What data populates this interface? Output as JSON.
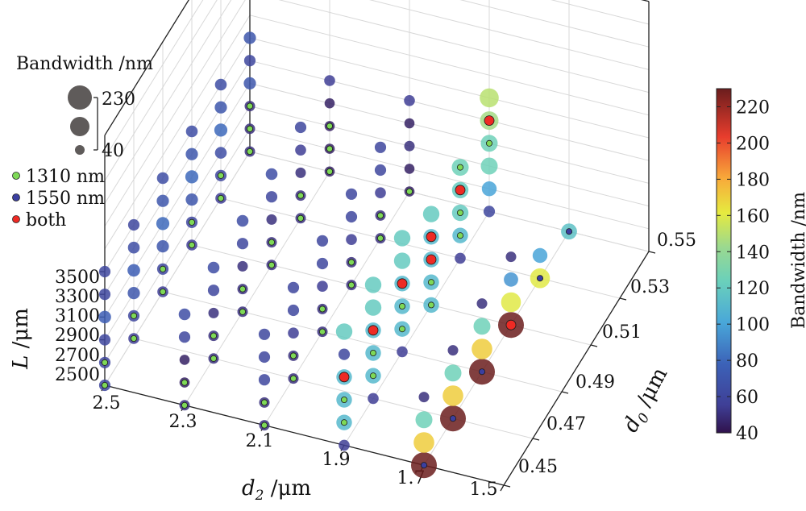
{
  "chart_data": {
    "type": "scatter3d",
    "axes": {
      "d2": {
        "ticks": [
          "2.5",
          "2.3",
          "2.1",
          "1.9",
          "1.7",
          "1.5"
        ],
        "range": [
          2.5,
          1.5
        ]
      },
      "d0": {
        "ticks": [
          "0.45",
          "0.47",
          "0.49",
          "0.51",
          "0.53",
          "0.55"
        ],
        "range": [
          0.45,
          0.55
        ]
      },
      "L": {
        "ticks": [
          "2500",
          "2700",
          "2900",
          "3100",
          "3300",
          "3500"
        ],
        "range": [
          2500,
          3500
        ]
      }
    },
    "size_legend": {
      "title": "Bandwidth /nm",
      "max_label": "230",
      "min_label": "40"
    },
    "marker_legend": [
      {
        "key": "1310",
        "label": "1310 nm",
        "color": "#7ed957"
      },
      {
        "key": "1550",
        "label": "1550 nm",
        "color": "#3b3fa0"
      },
      {
        "key": "both",
        "label": "both",
        "color": "#ee2a24"
      }
    ],
    "colorbar": {
      "ticks": [
        "40",
        "60",
        "80",
        "100",
        "120",
        "140",
        "160",
        "180",
        "200",
        "220"
      ],
      "range": [
        40,
        230
      ]
    },
    "groups": [
      {
        "d2": 2.5,
        "d0": 0.45,
        "points": [
          {
            "L": 2500,
            "bw": 60,
            "m": "1310"
          },
          {
            "L": 2700,
            "bw": 60,
            "m": "1310"
          },
          {
            "L": 2900,
            "bw": 60,
            "m": ""
          },
          {
            "L": 3100,
            "bw": 75,
            "m": ""
          },
          {
            "L": 3300,
            "bw": 60,
            "m": ""
          },
          {
            "L": 3500,
            "bw": 60,
            "m": ""
          }
        ]
      },
      {
        "d2": 2.5,
        "d0": 0.47,
        "points": [
          {
            "L": 2500,
            "bw": 55,
            "m": "1310"
          },
          {
            "L": 2700,
            "bw": 60,
            "m": "1310"
          },
          {
            "L": 2900,
            "bw": 70,
            "m": ""
          },
          {
            "L": 3100,
            "bw": 75,
            "m": ""
          },
          {
            "L": 3300,
            "bw": 65,
            "m": ""
          },
          {
            "L": 3500,
            "bw": 60,
            "m": ""
          }
        ]
      },
      {
        "d2": 2.5,
        "d0": 0.49,
        "points": [
          {
            "L": 2500,
            "bw": 55,
            "m": "1310"
          },
          {
            "L": 2700,
            "bw": 60,
            "m": "1310"
          },
          {
            "L": 2900,
            "bw": 70,
            "m": ""
          },
          {
            "L": 3100,
            "bw": 80,
            "m": ""
          },
          {
            "L": 3300,
            "bw": 70,
            "m": ""
          },
          {
            "L": 3500,
            "bw": 65,
            "m": ""
          }
        ]
      },
      {
        "d2": 2.5,
        "d0": 0.51,
        "points": [
          {
            "L": 2500,
            "bw": 55,
            "m": "1310"
          },
          {
            "L": 2700,
            "bw": 60,
            "m": "1310"
          },
          {
            "L": 2900,
            "bw": 70,
            "m": ""
          },
          {
            "L": 3100,
            "bw": 80,
            "m": ""
          },
          {
            "L": 3300,
            "bw": 70,
            "m": ""
          },
          {
            "L": 3500,
            "bw": 65,
            "m": ""
          }
        ]
      },
      {
        "d2": 2.5,
        "d0": 0.53,
        "points": [
          {
            "L": 2500,
            "bw": 55,
            "m": "1310"
          },
          {
            "L": 2700,
            "bw": 60,
            "m": "1310"
          },
          {
            "L": 2900,
            "bw": 65,
            "m": ""
          },
          {
            "L": 3100,
            "bw": 80,
            "m": ""
          },
          {
            "L": 3300,
            "bw": 70,
            "m": ""
          },
          {
            "L": 3500,
            "bw": 65,
            "m": ""
          }
        ]
      },
      {
        "d2": 2.5,
        "d0": 0.55,
        "points": [
          {
            "L": 2500,
            "bw": 50,
            "m": "1310"
          },
          {
            "L": 2700,
            "bw": 50,
            "m": "1310"
          },
          {
            "L": 2900,
            "bw": 50,
            "m": "1310"
          },
          {
            "L": 3100,
            "bw": 70,
            "m": ""
          },
          {
            "L": 3300,
            "bw": 60,
            "m": ""
          },
          {
            "L": 3500,
            "bw": 70,
            "m": ""
          }
        ]
      },
      {
        "d2": 2.3,
        "d0": 0.45,
        "points": [
          {
            "L": 2500,
            "bw": 50,
            "m": "1310"
          },
          {
            "L": 2700,
            "bw": 45,
            "m": "1310"
          },
          {
            "L": 2900,
            "bw": 45,
            "m": ""
          },
          {
            "L": 3100,
            "bw": 60,
            "m": ""
          },
          {
            "L": 3300,
            "bw": 65,
            "m": ""
          }
        ]
      },
      {
        "d2": 2.3,
        "d0": 0.47,
        "points": [
          {
            "L": 2500,
            "bw": 50,
            "m": "1310"
          },
          {
            "L": 2700,
            "bw": 50,
            "m": "1310"
          },
          {
            "L": 2900,
            "bw": 50,
            "m": ""
          },
          {
            "L": 3100,
            "bw": 60,
            "m": ""
          },
          {
            "L": 3300,
            "bw": 65,
            "m": ""
          }
        ]
      },
      {
        "d2": 2.3,
        "d0": 0.49,
        "points": [
          {
            "L": 2500,
            "bw": 50,
            "m": "1310"
          },
          {
            "L": 2700,
            "bw": 50,
            "m": "1310"
          },
          {
            "L": 2900,
            "bw": 50,
            "m": ""
          },
          {
            "L": 3100,
            "bw": 60,
            "m": ""
          },
          {
            "L": 3300,
            "bw": 65,
            "m": ""
          }
        ]
      },
      {
        "d2": 2.3,
        "d0": 0.51,
        "points": [
          {
            "L": 2500,
            "bw": 50,
            "m": "1310"
          },
          {
            "L": 2700,
            "bw": 50,
            "m": "1310"
          },
          {
            "L": 2900,
            "bw": 50,
            "m": ""
          },
          {
            "L": 3100,
            "bw": 60,
            "m": ""
          },
          {
            "L": 3300,
            "bw": 65,
            "m": ""
          }
        ]
      },
      {
        "d2": 2.3,
        "d0": 0.53,
        "points": [
          {
            "L": 2500,
            "bw": 50,
            "m": "1310"
          },
          {
            "L": 2700,
            "bw": 50,
            "m": "1310"
          },
          {
            "L": 2900,
            "bw": 50,
            "m": ""
          },
          {
            "L": 3100,
            "bw": 55,
            "m": ""
          },
          {
            "L": 3300,
            "bw": 60,
            "m": ""
          }
        ]
      },
      {
        "d2": 2.3,
        "d0": 0.55,
        "points": [
          {
            "L": 2500,
            "bw": 45,
            "m": "1310"
          },
          {
            "L": 2700,
            "bw": 45,
            "m": "1310"
          },
          {
            "L": 2900,
            "bw": 45,
            "m": "1310"
          },
          {
            "L": 3100,
            "bw": 45,
            "m": ""
          },
          {
            "L": 3300,
            "bw": 55,
            "m": ""
          }
        ]
      },
      {
        "d2": 2.1,
        "d0": 0.45,
        "points": [
          {
            "L": 2500,
            "bw": 50,
            "m": "1310"
          },
          {
            "L": 2700,
            "bw": 50,
            "m": "1310"
          },
          {
            "L": 2900,
            "bw": 60,
            "m": ""
          },
          {
            "L": 3100,
            "bw": 60,
            "m": ""
          },
          {
            "L": 3300,
            "bw": 60,
            "m": ""
          }
        ]
      },
      {
        "d2": 2.1,
        "d0": 0.47,
        "points": [
          {
            "L": 2500,
            "bw": 50,
            "m": "1310"
          },
          {
            "L": 2700,
            "bw": 50,
            "m": "1310"
          },
          {
            "L": 2900,
            "bw": 55,
            "m": ""
          },
          {
            "L": 3100,
            "bw": 60,
            "m": ""
          },
          {
            "L": 3300,
            "bw": 60,
            "m": ""
          }
        ]
      },
      {
        "d2": 2.1,
        "d0": 0.49,
        "points": [
          {
            "L": 2500,
            "bw": 50,
            "m": "1310"
          },
          {
            "L": 2700,
            "bw": 50,
            "m": "1310"
          },
          {
            "L": 2900,
            "bw": 55,
            "m": ""
          },
          {
            "L": 3100,
            "bw": 60,
            "m": ""
          },
          {
            "L": 3300,
            "bw": 60,
            "m": ""
          }
        ]
      },
      {
        "d2": 2.1,
        "d0": 0.51,
        "points": [
          {
            "L": 2500,
            "bw": 50,
            "m": "1310"
          },
          {
            "L": 2700,
            "bw": 50,
            "m": "1310"
          },
          {
            "L": 2900,
            "bw": 55,
            "m": ""
          },
          {
            "L": 3100,
            "bw": 60,
            "m": ""
          },
          {
            "L": 3300,
            "bw": 60,
            "m": ""
          }
        ]
      },
      {
        "d2": 2.1,
        "d0": 0.53,
        "points": [
          {
            "L": 2500,
            "bw": 50,
            "m": "1310"
          },
          {
            "L": 2700,
            "bw": 50,
            "m": "1310"
          },
          {
            "L": 2900,
            "bw": 55,
            "m": ""
          },
          {
            "L": 3100,
            "bw": 60,
            "m": ""
          },
          {
            "L": 3300,
            "bw": 60,
            "m": ""
          }
        ]
      },
      {
        "d2": 2.1,
        "d0": 0.55,
        "points": [
          {
            "L": 2500,
            "bw": 45,
            "m": "1310"
          },
          {
            "L": 2700,
            "bw": 45,
            "m": ""
          },
          {
            "L": 2900,
            "bw": 50,
            "m": ""
          },
          {
            "L": 3100,
            "bw": 45,
            "m": ""
          },
          {
            "L": 3300,
            "bw": 55,
            "m": ""
          }
        ]
      },
      {
        "d2": 1.9,
        "d0": 0.45,
        "points": [
          {
            "L": 2500,
            "bw": 55,
            "m": ""
          },
          {
            "L": 2700,
            "bw": 110,
            "m": "1310"
          },
          {
            "L": 2900,
            "bw": 110,
            "m": "1310"
          },
          {
            "L": 3100,
            "bw": 110,
            "m": "both"
          },
          {
            "L": 3300,
            "bw": 60,
            "m": ""
          },
          {
            "L": 3500,
            "bw": 120,
            "m": ""
          }
        ]
      },
      {
        "d2": 1.9,
        "d0": 0.47,
        "points": [
          {
            "L": 2500,
            "bw": 55,
            "m": ""
          },
          {
            "L": 2700,
            "bw": 110,
            "m": "1310"
          },
          {
            "L": 2900,
            "bw": 110,
            "m": "1310"
          },
          {
            "L": 3100,
            "bw": 110,
            "m": "both"
          },
          {
            "L": 3300,
            "bw": 120,
            "m": ""
          },
          {
            "L": 3500,
            "bw": 120,
            "m": ""
          }
        ]
      },
      {
        "d2": 1.9,
        "d0": 0.49,
        "points": [
          {
            "L": 2500,
            "bw": 55,
            "m": ""
          },
          {
            "L": 2700,
            "bw": 110,
            "m": "1310"
          },
          {
            "L": 2900,
            "bw": 110,
            "m": "1310"
          },
          {
            "L": 3100,
            "bw": 110,
            "m": "both"
          },
          {
            "L": 3300,
            "bw": 120,
            "m": ""
          },
          {
            "L": 3500,
            "bw": 120,
            "m": ""
          }
        ]
      },
      {
        "d2": 1.9,
        "d0": 0.51,
        "points": [
          {
            "L": 2500,
            "bw": 110,
            "m": "1310"
          },
          {
            "L": 2700,
            "bw": 110,
            "m": "1310"
          },
          {
            "L": 2900,
            "bw": 110,
            "m": "both"
          },
          {
            "L": 3100,
            "bw": 110,
            "m": "both"
          },
          {
            "L": 3300,
            "bw": 120,
            "m": ""
          }
        ]
      },
      {
        "d2": 1.9,
        "d0": 0.53,
        "points": [
          {
            "L": 2500,
            "bw": 55,
            "m": ""
          },
          {
            "L": 2700,
            "bw": 110,
            "m": "1310"
          },
          {
            "L": 2900,
            "bw": 120,
            "m": "1310"
          },
          {
            "L": 3100,
            "bw": 120,
            "m": "both"
          },
          {
            "L": 3300,
            "bw": 125,
            "m": "1310"
          }
        ]
      },
      {
        "d2": 1.9,
        "d0": 0.55,
        "points": [
          {
            "L": 2500,
            "bw": 60,
            "m": ""
          },
          {
            "L": 2700,
            "bw": 100,
            "m": ""
          },
          {
            "L": 2900,
            "bw": 125,
            "m": ""
          },
          {
            "L": 3100,
            "bw": 125,
            "m": "1310"
          },
          {
            "L": 3300,
            "bw": 145,
            "m": "both"
          },
          {
            "L": 3500,
            "bw": 150,
            "m": ""
          }
        ]
      },
      {
        "d2": 1.7,
        "d0": 0.45,
        "points": [
          {
            "L": 2500,
            "bw": 230,
            "m": "1550"
          },
          {
            "L": 2700,
            "bw": 170,
            "m": ""
          },
          {
            "L": 2900,
            "bw": 125,
            "m": ""
          },
          {
            "L": 3100,
            "bw": 50,
            "m": ""
          }
        ]
      },
      {
        "d2": 1.7,
        "d0": 0.47,
        "points": [
          {
            "L": 2500,
            "bw": 230,
            "m": "1550"
          },
          {
            "L": 2700,
            "bw": 170,
            "m": ""
          },
          {
            "L": 2900,
            "bw": 125,
            "m": ""
          },
          {
            "L": 3100,
            "bw": 50,
            "m": ""
          }
        ]
      },
      {
        "d2": 1.7,
        "d0": 0.49,
        "points": [
          {
            "L": 2500,
            "bw": 230,
            "m": "1550"
          },
          {
            "L": 2700,
            "bw": 170,
            "m": ""
          },
          {
            "L": 2900,
            "bw": 125,
            "m": ""
          },
          {
            "L": 3100,
            "bw": 50,
            "m": ""
          }
        ]
      },
      {
        "d2": 1.7,
        "d0": 0.51,
        "points": [
          {
            "L": 2500,
            "bw": 230,
            "m": "both"
          },
          {
            "L": 2700,
            "bw": 160,
            "m": ""
          },
          {
            "L": 2900,
            "bw": 95,
            "m": ""
          },
          {
            "L": 3100,
            "bw": 50,
            "m": ""
          }
        ]
      },
      {
        "d2": 1.7,
        "d0": 0.53,
        "points": [
          {
            "L": 2500,
            "bw": 160,
            "m": "1550"
          },
          {
            "L": 2700,
            "bw": 100,
            "m": ""
          }
        ]
      },
      {
        "d2": 1.7,
        "d0": 0.55,
        "points": [
          {
            "L": 2500,
            "bw": 115,
            "m": "1550"
          }
        ]
      }
    ]
  }
}
